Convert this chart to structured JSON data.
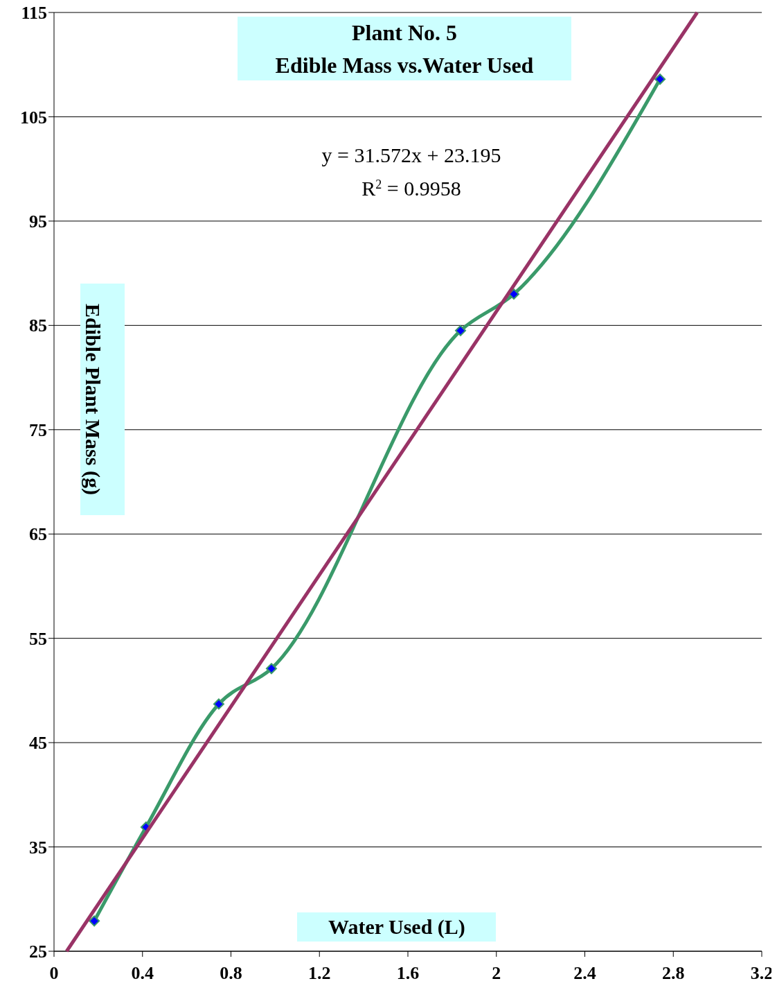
{
  "chart_data": {
    "type": "line",
    "title": "Plant No. 5",
    "subtitle": "Edible Mass vs.Water Used",
    "xlabel": "Water Used (L)",
    "ylabel": "Edible Plant Mass (g)",
    "annotations": [
      "y = 31.572x + 23.195",
      "R$^{2}$ = 0.9958"
    ],
    "xlim": [
      0,
      3.2
    ],
    "xticks": [
      0,
      0.4,
      0.8,
      1.2,
      1.6,
      2,
      2.4,
      2.8,
      3.2
    ],
    "ylim": [
      25,
      115
    ],
    "yticks": [
      25,
      35,
      45,
      55,
      65,
      75,
      85,
      95,
      105,
      115
    ],
    "grid": "y",
    "series": [
      {
        "color": "#3a9a6a",
        "marker": "diamond",
        "x": [
          0.182,
          0.416,
          0.745,
          0.983,
          1.838,
          2.079,
          2.74
        ],
        "values": [
          27.9,
          36.9,
          48.7,
          52.1,
          84.5,
          88.0,
          108.6
        ]
      },
      {
        "color": "#993366",
        "marker": "none",
        "x": [
          0.057,
          2.908
        ],
        "values": [
          25,
          115
        ]
      }
    ]
  }
}
